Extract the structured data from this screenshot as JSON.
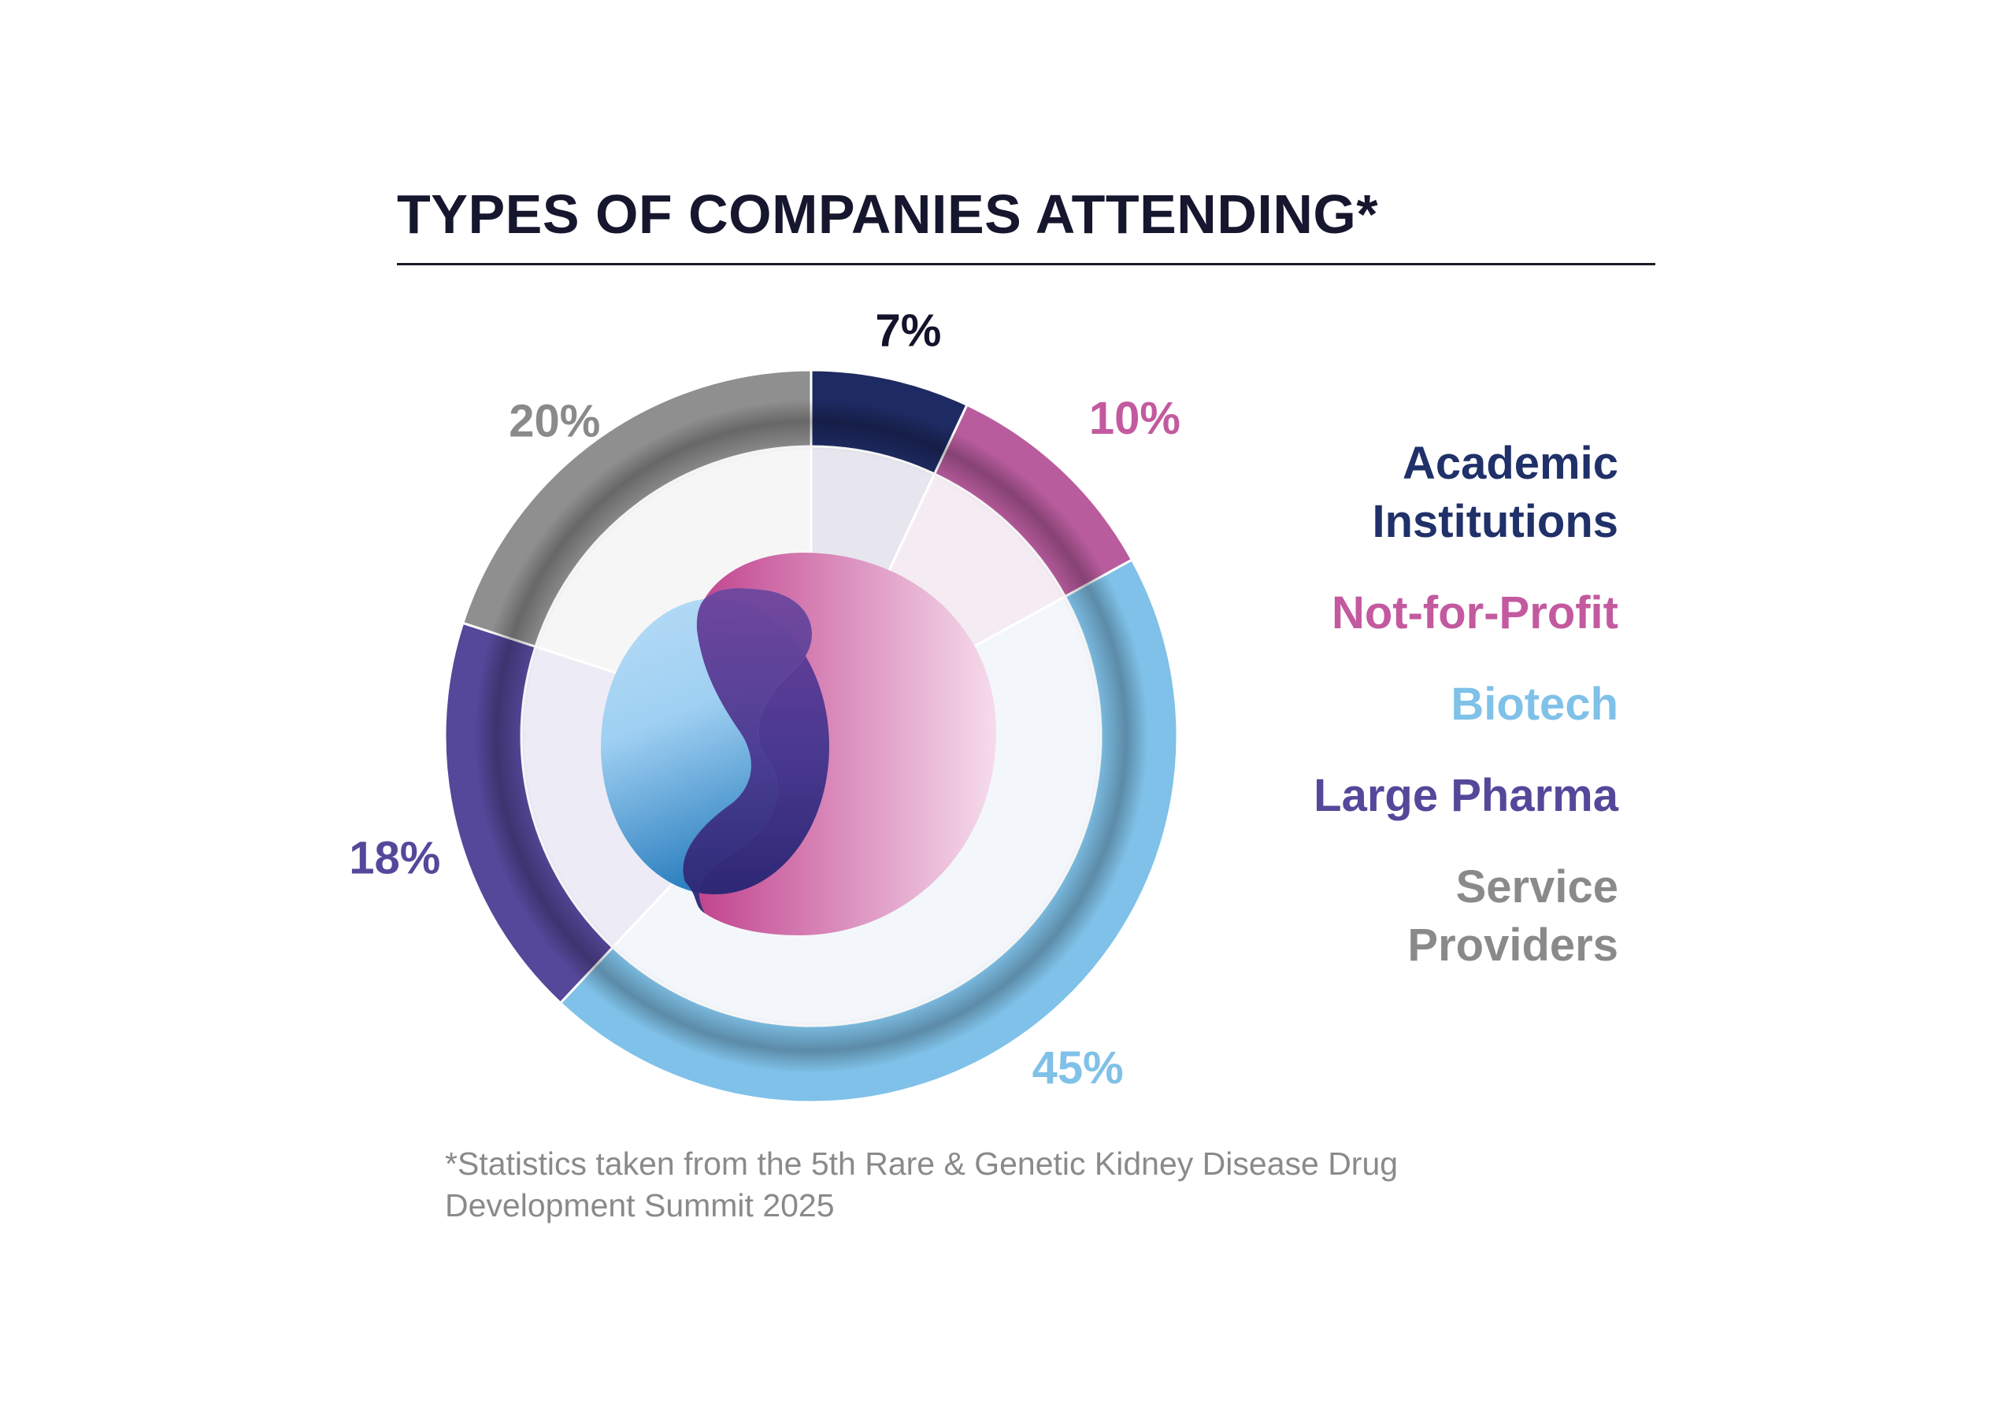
{
  "header": {
    "title": "TYPES OF COMPANIES ATTENDING*"
  },
  "chart_data": {
    "type": "pie",
    "title": "TYPES OF COMPANIES ATTENDING*",
    "start_angle_deg": 0,
    "direction": "clockwise",
    "slices": [
      {
        "label": "Academic Institutions",
        "value": 7,
        "display": "7%",
        "color": "#1e2a62",
        "tint": "#e7e6ef",
        "label_color": "#13132b"
      },
      {
        "label": "Not-for-Profit",
        "value": 10,
        "display": "10%",
        "color": "#b95c9e",
        "tint": "#f5ecf3",
        "label_color": "#c35a9f"
      },
      {
        "label": "Biotech",
        "value": 45,
        "display": "45%",
        "color": "#7fc1e8",
        "tint": "#f3f7fb",
        "label_color": "#7fc1e8"
      },
      {
        "label": "Large Pharma",
        "value": 18,
        "display": "18%",
        "color": "#55479a",
        "tint": "#edebf6",
        "label_color": "#55479a"
      },
      {
        "label": "Service Providers",
        "value": 20,
        "display": "20%",
        "color": "#8f8f8f",
        "tint": "#f6f6f6",
        "label_color": "#8a8a8a"
      }
    ],
    "legend": [
      {
        "text": "Academic\nInstitutions",
        "color": "#203069"
      },
      {
        "text": "Not-for-Profit",
        "color": "#c35a9f"
      },
      {
        "text": "Biotech",
        "color": "#7fc1e8"
      },
      {
        "text": "Large Pharma",
        "color": "#55479a"
      },
      {
        "text": "Service\nProviders",
        "color": "#8a8a8a"
      }
    ],
    "legend_position": "right"
  },
  "footnote": "*Statistics taken from the 5th Rare & Genetic Kidney Disease Drug Development Summit 2025"
}
